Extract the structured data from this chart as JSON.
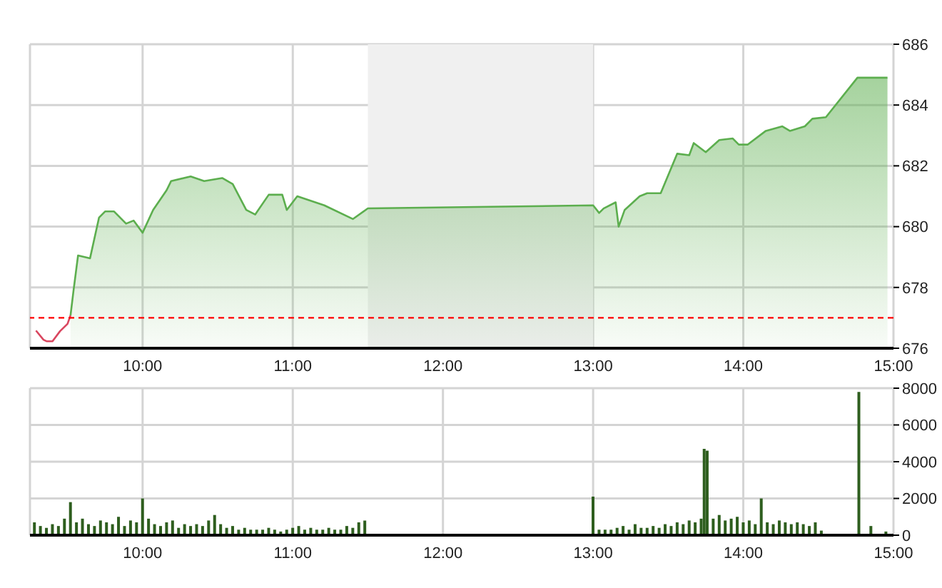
{
  "chart_data": [
    {
      "type": "area",
      "xlim": [
        9.25,
        15
      ],
      "xticks": [
        {
          "value": 10,
          "label": "10:00"
        },
        {
          "value": 11,
          "label": "11:00"
        },
        {
          "value": 12,
          "label": "12:00"
        },
        {
          "value": 13,
          "label": "13:00"
        },
        {
          "value": 14,
          "label": "14:00"
        },
        {
          "value": 15,
          "label": "15:00"
        }
      ],
      "ylim": [
        676,
        686
      ],
      "yticks": [
        676,
        678,
        680,
        682,
        684,
        686
      ],
      "grid": true,
      "marker": "none",
      "line_style": "solid",
      "series": [
        {
          "type": "line",
          "color": "#d9465f",
          "x": [
            9.29,
            9.34,
            9.36,
            9.4,
            9.45,
            9.5,
            9.52
          ],
          "values": [
            676.58,
            676.28,
            676.23,
            676.23,
            676.56,
            676.8,
            677.08
          ]
        },
        {
          "color": "#5cae4e",
          "x": [
            9.52,
            9.54,
            9.57,
            9.65,
            9.71,
            9.75,
            9.81,
            9.89,
            9.94,
            10.0,
            10.07,
            10.16,
            10.19,
            10.32,
            10.41,
            10.53,
            10.6,
            10.69,
            10.75,
            10.84,
            10.93,
            10.96,
            11.03,
            11.21,
            11.4,
            11.5,
            13.0,
            13.04,
            13.07,
            13.15,
            13.17,
            13.21,
            13.31,
            13.36,
            13.45,
            13.56,
            13.64,
            13.67,
            13.75,
            13.84,
            13.93,
            13.97,
            14.03,
            14.15,
            14.26,
            14.31,
            14.41,
            14.46,
            14.55,
            14.76,
            14.96
          ],
          "values": [
            677.08,
            677.9,
            679.05,
            678.96,
            680.3,
            680.5,
            680.5,
            680.1,
            680.2,
            679.8,
            680.55,
            681.2,
            681.5,
            681.65,
            681.5,
            681.6,
            681.4,
            680.55,
            680.4,
            681.05,
            681.05,
            680.55,
            681.0,
            680.7,
            680.25,
            680.6,
            680.7,
            680.45,
            680.6,
            680.8,
            680.0,
            680.55,
            681.0,
            681.1,
            681.1,
            682.4,
            682.35,
            682.75,
            682.45,
            682.85,
            682.9,
            682.7,
            682.7,
            683.15,
            683.3,
            683.15,
            683.3,
            683.55,
            683.6,
            684.9,
            684.9
          ]
        }
      ],
      "ref_lines": [
        {
          "axis": "y",
          "value": 677,
          "color": "#ff0000",
          "line_style": "dashed"
        }
      ],
      "bands": [
        {
          "axis": "x",
          "from": 11.5,
          "to": 13,
          "color": "#f0f0f0"
        }
      ]
    },
    {
      "type": "bar",
      "xlim": [
        9.25,
        15
      ],
      "xticks": [
        {
          "value": 10,
          "label": "10:00"
        },
        {
          "value": 11,
          "label": "11:00"
        },
        {
          "value": 12,
          "label": "12:00"
        },
        {
          "value": 13,
          "label": "13:00"
        },
        {
          "value": 14,
          "label": "14:00"
        },
        {
          "value": 15,
          "label": "15:00"
        }
      ],
      "ylim": [
        0,
        8000
      ],
      "yticks": [
        0,
        2000,
        4000,
        6000,
        8000
      ],
      "grid": true,
      "series": [
        {
          "color": "#2e5e1e",
          "x": [
            9.28,
            9.32,
            9.36,
            9.4,
            9.44,
            9.48,
            9.52,
            9.56,
            9.6,
            9.64,
            9.68,
            9.72,
            9.76,
            9.8,
            9.84,
            9.88,
            9.92,
            9.96,
            10.0,
            10.04,
            10.08,
            10.12,
            10.16,
            10.2,
            10.24,
            10.28,
            10.32,
            10.36,
            10.4,
            10.44,
            10.48,
            10.52,
            10.56,
            10.6,
            10.64,
            10.68,
            10.72,
            10.76,
            10.8,
            10.84,
            10.88,
            10.92,
            10.96,
            11.0,
            11.04,
            11.08,
            11.12,
            11.16,
            11.2,
            11.24,
            11.28,
            11.32,
            11.36,
            11.4,
            11.44,
            11.48,
            13.0,
            13.04,
            13.08,
            13.12,
            13.16,
            13.2,
            13.24,
            13.28,
            13.32,
            13.36,
            13.4,
            13.44,
            13.48,
            13.52,
            13.56,
            13.6,
            13.64,
            13.68,
            13.72,
            13.74,
            13.76,
            13.8,
            13.84,
            13.88,
            13.92,
            13.96,
            14.0,
            14.04,
            14.08,
            14.12,
            14.16,
            14.2,
            14.24,
            14.28,
            14.32,
            14.36,
            14.4,
            14.44,
            14.48,
            14.52,
            14.77,
            14.85,
            14.95
          ],
          "values": [
            700,
            500,
            400,
            600,
            500,
            900,
            1800,
            700,
            900,
            600,
            500,
            800,
            700,
            600,
            1000,
            500,
            800,
            700,
            2000,
            900,
            600,
            500,
            700,
            800,
            400,
            600,
            500,
            600,
            500,
            800,
            1100,
            600,
            400,
            500,
            300,
            400,
            300,
            300,
            300,
            400,
            300,
            200,
            300,
            400,
            500,
            300,
            400,
            300,
            300,
            400,
            300,
            300,
            500,
            400,
            700,
            800,
            2100,
            300,
            300,
            300,
            400,
            500,
            300,
            600,
            400,
            400,
            500,
            400,
            600,
            500,
            700,
            600,
            800,
            700,
            900,
            4700,
            4600,
            900,
            1100,
            800,
            900,
            1000,
            700,
            800,
            600,
            2000,
            700,
            600,
            800,
            700,
            600,
            700,
            600,
            500,
            700,
            250,
            7800,
            500,
            200
          ]
        }
      ]
    }
  ]
}
